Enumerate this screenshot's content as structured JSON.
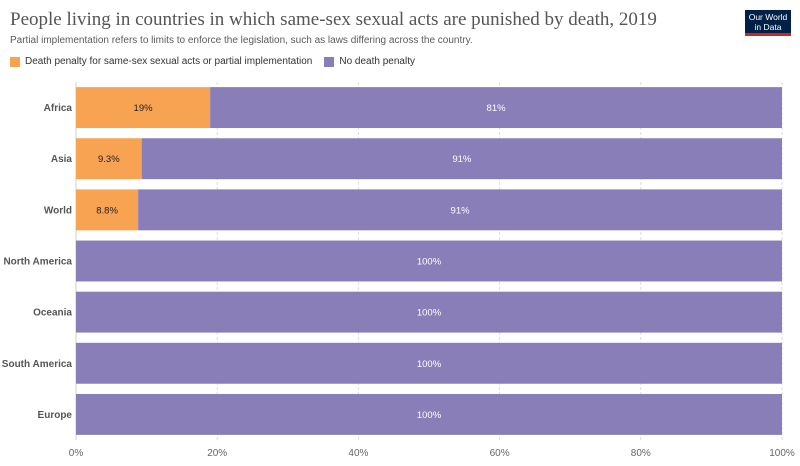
{
  "header": {
    "title": "People living in countries in which same-sex sexual acts are punished by death, 2019",
    "subtitle": "Partial implementation refers to limits to enforce the legislation, such as laws differing across the country.",
    "logo_line1": "Our World",
    "logo_line2": "in Data"
  },
  "legend": [
    {
      "label": "Death penalty for same-sex sexual acts or partial implementation",
      "color": "#f8a352"
    },
    {
      "label": "No death penalty",
      "color": "#8a7eb8"
    }
  ],
  "chart_data": {
    "type": "bar",
    "orientation": "horizontal",
    "stacked": true,
    "categories": [
      "Africa",
      "Asia",
      "World",
      "North America",
      "Oceania",
      "South America",
      "Europe"
    ],
    "series": [
      {
        "name": "Death penalty for same-sex sexual acts or partial implementation",
        "color": "#f8a352",
        "values": [
          19,
          9.3,
          8.8,
          0,
          0,
          0,
          0
        ],
        "labels": [
          "19%",
          "9.3%",
          "8.8%",
          "",
          "",
          "",
          ""
        ]
      },
      {
        "name": "No death penalty",
        "color": "#8a7eb8",
        "values": [
          81,
          90.7,
          91.2,
          100,
          100,
          100,
          100
        ],
        "labels": [
          "81%",
          "91%",
          "91%",
          "100%",
          "100%",
          "100%",
          "100%"
        ]
      }
    ],
    "xlim": [
      0,
      100
    ],
    "xticks": [
      "0%",
      "20%",
      "40%",
      "60%",
      "80%",
      "100%"
    ],
    "grid": true,
    "legend_position": "top-left"
  }
}
